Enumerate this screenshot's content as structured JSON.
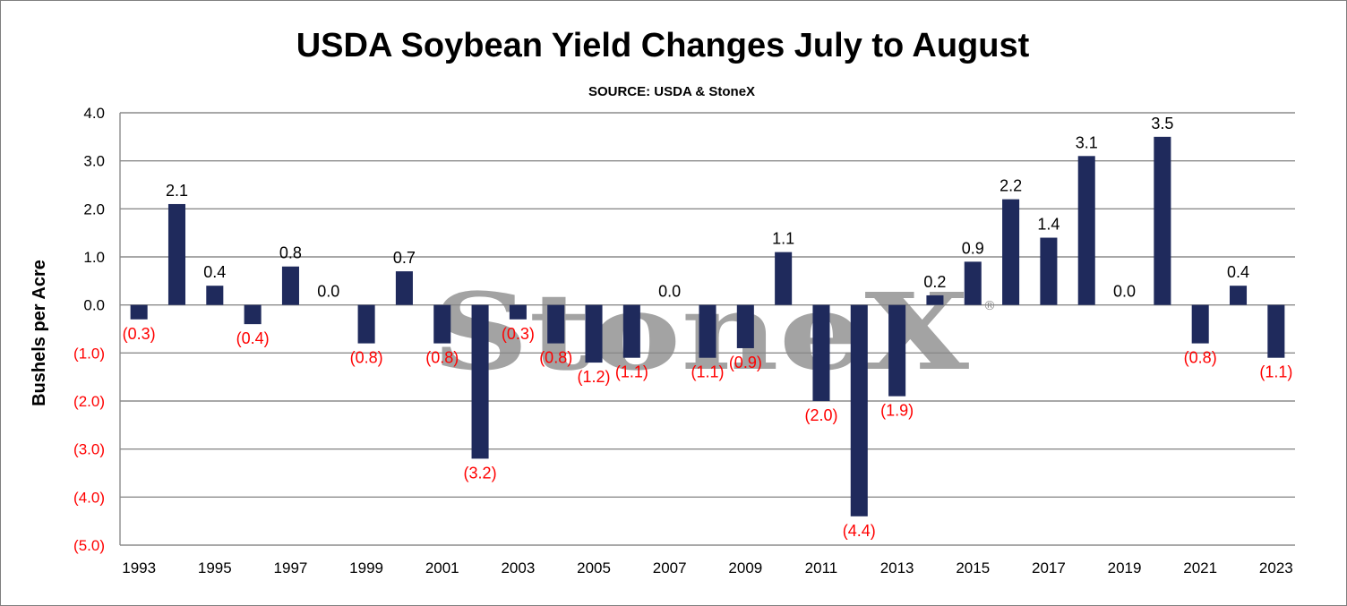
{
  "chart_data": {
    "type": "bar",
    "title": "USDA Soybean Yield Changes July to August",
    "subtitle": "SOURCE: USDA & StoneX",
    "xlabel": "",
    "ylabel": "Bushels per Acre",
    "ylim": [
      -5.0,
      4.0
    ],
    "y_ticks": [
      4.0,
      3.0,
      2.0,
      1.0,
      0.0,
      -1.0,
      -2.0,
      -3.0,
      -4.0,
      -5.0
    ],
    "y_tick_labels": [
      "4.0",
      "3.0",
      "2.0",
      "1.0",
      "0.0",
      "(1.0)",
      "(2.0)",
      "(3.0)",
      "(4.0)",
      "(5.0)"
    ],
    "grid": true,
    "categories": [
      "1993",
      "1994",
      "1995",
      "1996",
      "1997",
      "1998",
      "1999",
      "2000",
      "2001",
      "2002",
      "2003",
      "2004",
      "2005",
      "2006",
      "2007",
      "2008",
      "2009",
      "2010",
      "2011",
      "2012",
      "2013",
      "2014",
      "2015",
      "2016",
      "2017",
      "2018",
      "2019",
      "2020",
      "2021",
      "2022",
      "2023"
    ],
    "x_tick_labels": [
      "1993",
      "1995",
      "1997",
      "1999",
      "2001",
      "2003",
      "2005",
      "2007",
      "2009",
      "2011",
      "2013",
      "2015",
      "2017",
      "2019",
      "2021",
      "2023"
    ],
    "values": [
      -0.3,
      2.1,
      0.4,
      -0.4,
      0.8,
      0.0,
      -0.8,
      0.7,
      -0.8,
      -3.2,
      -0.3,
      -0.8,
      -1.2,
      -1.1,
      0.0,
      -1.1,
      -0.9,
      1.1,
      -2.0,
      -4.4,
      -1.9,
      0.2,
      0.9,
      2.2,
      1.4,
      3.1,
      0.0,
      3.5,
      -0.8,
      0.4,
      -1.1
    ],
    "data_labels": [
      "(0.3)",
      "2.1",
      "0.4",
      "(0.4)",
      "0.8",
      "0.0",
      "(0.8)",
      "0.7",
      "(0.8)",
      "(3.2)",
      "(0.3)",
      "(0.8)",
      "(1.2)",
      "(1.1)",
      "0.0",
      "(1.1)",
      "(0.9)",
      "1.1",
      "(2.0)",
      "(4.4)",
      "(1.9)",
      "0.2",
      "0.9",
      "2.2",
      "1.4",
      "3.1",
      "0.0",
      "3.5",
      "(0.8)",
      "0.4",
      "(1.1)"
    ],
    "watermark": "StoneX",
    "colors": {
      "bar": "#1f2a5c",
      "negative_label": "#ff0000",
      "positive_label": "#000000",
      "grid": "#8c8c8c"
    }
  }
}
